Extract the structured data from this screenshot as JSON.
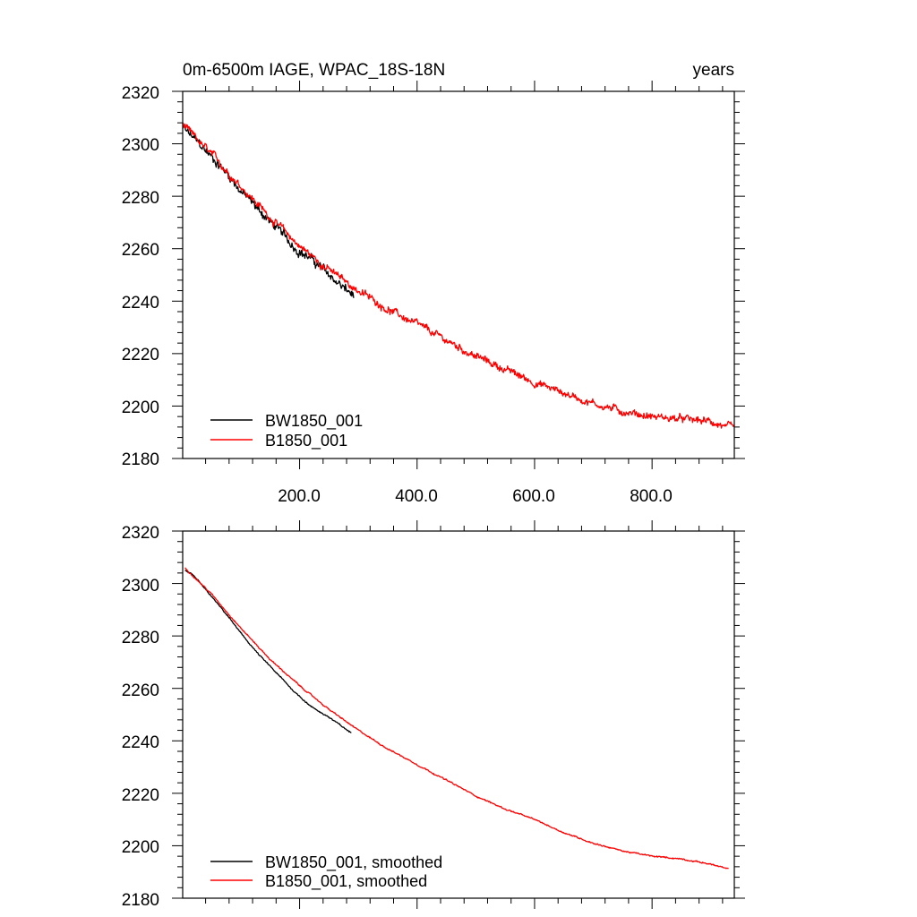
{
  "chart_data": [
    {
      "type": "line",
      "title_left": "0m-6500m IAGE, WPAC_18S-18N",
      "title_right": "years",
      "xlim": [
        1,
        940
      ],
      "ylim": [
        2180,
        2320
      ],
      "x_ticks": [
        200,
        400,
        600,
        800
      ],
      "x_tick_labels": [
        "200.0",
        "400.0",
        "600.0",
        "800.0"
      ],
      "y_ticks": [
        2180,
        2200,
        2220,
        2240,
        2260,
        2280,
        2300,
        2320
      ],
      "y_tick_labels": [
        "2180",
        "2200",
        "2220",
        "2240",
        "2260",
        "2280",
        "2300",
        "2320"
      ],
      "legend_position": "bottom-left",
      "series": [
        {
          "name": "BW1850_001",
          "color": "#000000",
          "noise": 1.6,
          "x": [
            1,
            20,
            50,
            80,
            100,
            130,
            160,
            190,
            220,
            250,
            275,
            292
          ],
          "values": [
            2306,
            2302,
            2295,
            2288,
            2282,
            2275,
            2268,
            2261,
            2256,
            2250,
            2245,
            2242
          ]
        },
        {
          "name": "B1850_001",
          "color": "#ff0000",
          "noise": 1.3,
          "x": [
            1,
            50,
            100,
            150,
            200,
            250,
            300,
            350,
            400,
            450,
            500,
            550,
            600,
            650,
            700,
            750,
            800,
            850,
            900,
            940
          ],
          "values": [
            2307,
            2296,
            2284,
            2272,
            2261,
            2252,
            2244,
            2237,
            2231,
            2225,
            2219,
            2214,
            2209,
            2205,
            2201,
            2198,
            2196,
            2195,
            2194,
            2191
          ]
        }
      ]
    },
    {
      "type": "line",
      "xlim": [
        1,
        940
      ],
      "ylim": [
        2180,
        2320
      ],
      "x_ticks": [
        200,
        400,
        600,
        800
      ],
      "y_ticks": [
        2180,
        2200,
        2220,
        2240,
        2260,
        2280,
        2300,
        2320
      ],
      "y_tick_labels": [
        "2180",
        "2200",
        "2220",
        "2240",
        "2260",
        "2280",
        "2300",
        "2320"
      ],
      "legend_position": "bottom-left",
      "series": [
        {
          "name": "BW1850_001, smoothed",
          "color": "#000000",
          "noise": 0.25,
          "x": [
            5,
            20,
            50,
            80,
            100,
            130,
            160,
            190,
            220,
            250,
            275,
            288
          ],
          "values": [
            2305,
            2303,
            2295,
            2287,
            2281,
            2273,
            2266,
            2259,
            2253,
            2249,
            2245,
            2243
          ]
        },
        {
          "name": "B1850_001, smoothed",
          "color": "#ff0000",
          "noise": 0.25,
          "x": [
            5,
            50,
            100,
            150,
            200,
            250,
            300,
            350,
            400,
            450,
            500,
            550,
            600,
            650,
            700,
            750,
            800,
            850,
            900,
            930
          ],
          "values": [
            2306,
            2296,
            2283,
            2271,
            2261,
            2252,
            2244,
            2237,
            2231,
            2225,
            2219,
            2214,
            2210,
            2205,
            2201,
            2198,
            2196,
            2195,
            2193,
            2191
          ]
        }
      ]
    }
  ]
}
